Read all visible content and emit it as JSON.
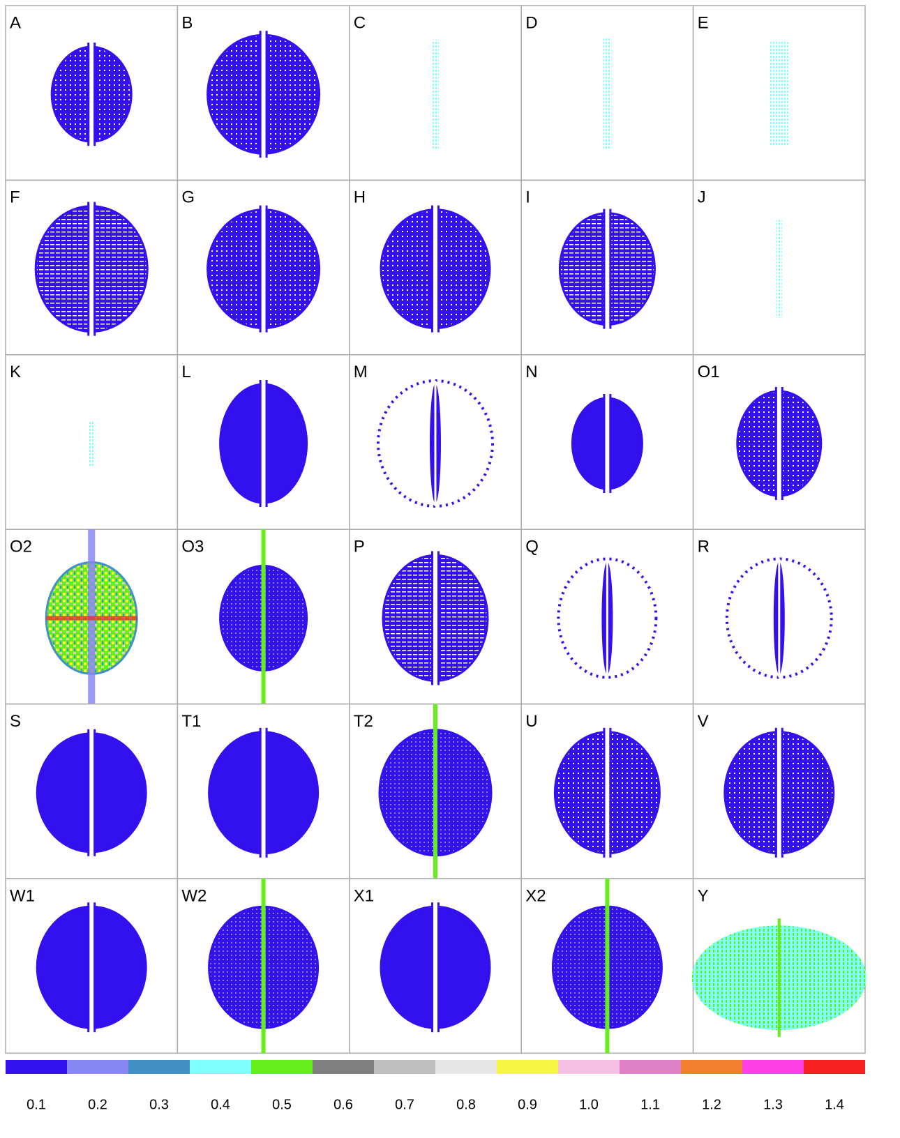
{
  "panels": [
    "A",
    "B",
    "C",
    "D",
    "E",
    "F",
    "G",
    "H",
    "I",
    "J",
    "K",
    "L",
    "M",
    "N",
    "O1",
    "O2",
    "O3",
    "P",
    "Q",
    "R",
    "S",
    "T1",
    "T2",
    "U",
    "V",
    "W1",
    "W2",
    "X1",
    "X2",
    "Y"
  ],
  "colorbar": [
    {
      "label": "0.1",
      "color": "#3311ee"
    },
    {
      "label": "0.2",
      "color": "#8787f5"
    },
    {
      "label": "0.3",
      "color": "#4190c6"
    },
    {
      "label": "0.4",
      "color": "#80ffff"
    },
    {
      "label": "0.5",
      "color": "#66ee1a"
    },
    {
      "label": "0.6",
      "color": "#808080"
    },
    {
      "label": "0.7",
      "color": "#bfbfbf"
    },
    {
      "label": "0.8",
      "color": "#e6e6e6"
    },
    {
      "label": "0.9",
      "color": "#f5f542"
    },
    {
      "label": "1.0",
      "color": "#f5c0e4"
    },
    {
      "label": "1.1",
      "color": "#e080c6"
    },
    {
      "label": "1.2",
      "color": "#f0802e"
    },
    {
      "label": "1.3",
      "color": "#ff40e6"
    },
    {
      "label": "1.4",
      "color": "#f52020"
    }
  ]
}
